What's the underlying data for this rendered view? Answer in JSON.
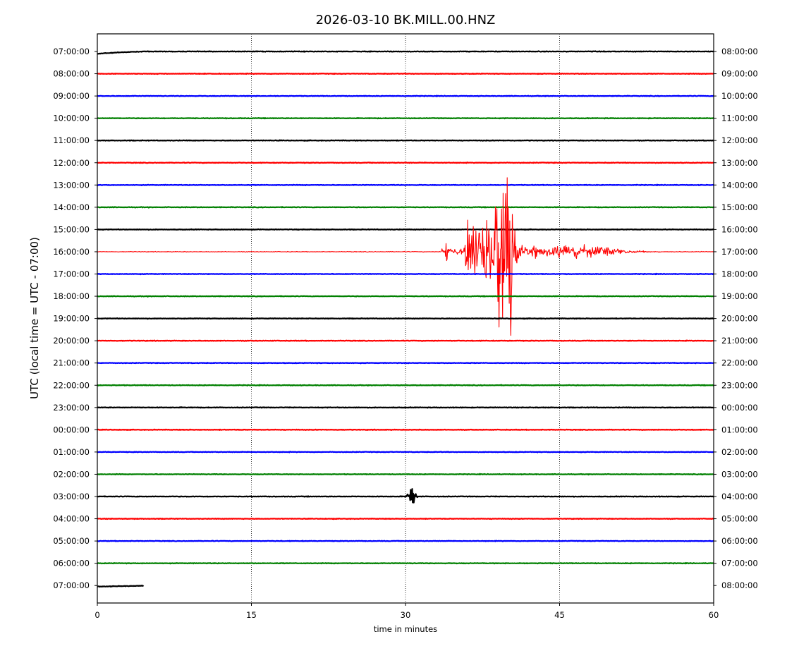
{
  "chart_data": {
    "type": "line",
    "title": "2026-03-10 BK.MILL.00.HNZ",
    "xlabel": "time in minutes",
    "ylabel": "UTC (local time = UTC - 07:00)",
    "xlim": [
      0,
      60
    ],
    "xticks": [
      0,
      15,
      30,
      45,
      60
    ],
    "grid": "vertical dotted lines at 15, 30, 45",
    "trace_colors": [
      "#000000",
      "#ff0000",
      "#0000ff",
      "#008000"
    ],
    "rows_left": [
      "07:00:00",
      "08:00:00",
      "09:00:00",
      "10:00:00",
      "11:00:00",
      "12:00:00",
      "13:00:00",
      "14:00:00",
      "15:00:00",
      "16:00:00",
      "17:00:00",
      "18:00:00",
      "19:00:00",
      "20:00:00",
      "21:00:00",
      "22:00:00",
      "23:00:00",
      "00:00:00",
      "01:00:00",
      "02:00:00",
      "03:00:00",
      "04:00:00",
      "05:00:00",
      "06:00:00",
      "07:00:00"
    ],
    "rows_right": [
      "08:00:00",
      "09:00:00",
      "10:00:00",
      "11:00:00",
      "12:00:00",
      "13:00:00",
      "14:00:00",
      "15:00:00",
      "16:00:00",
      "17:00:00",
      "18:00:00",
      "19:00:00",
      "20:00:00",
      "21:00:00",
      "22:00:00",
      "23:00:00",
      "00:00:00",
      "01:00:00",
      "02:00:00",
      "03:00:00",
      "04:00:00",
      "05:00:00",
      "06:00:00",
      "07:00:00",
      "08:00:00"
    ],
    "last_row_end_minute": 4.5,
    "events": [
      {
        "row": 9,
        "start_minute": 33.5,
        "peak_minute": 40,
        "end_minute": 55,
        "description": "large earthquake on 16:00:00 trace, clipping neighbouring rows"
      },
      {
        "row": 20,
        "start_minute": 29.8,
        "peak_minute": 30.6,
        "end_minute": 31.2,
        "description": "small event on 03:00:00 trace"
      }
    ]
  }
}
